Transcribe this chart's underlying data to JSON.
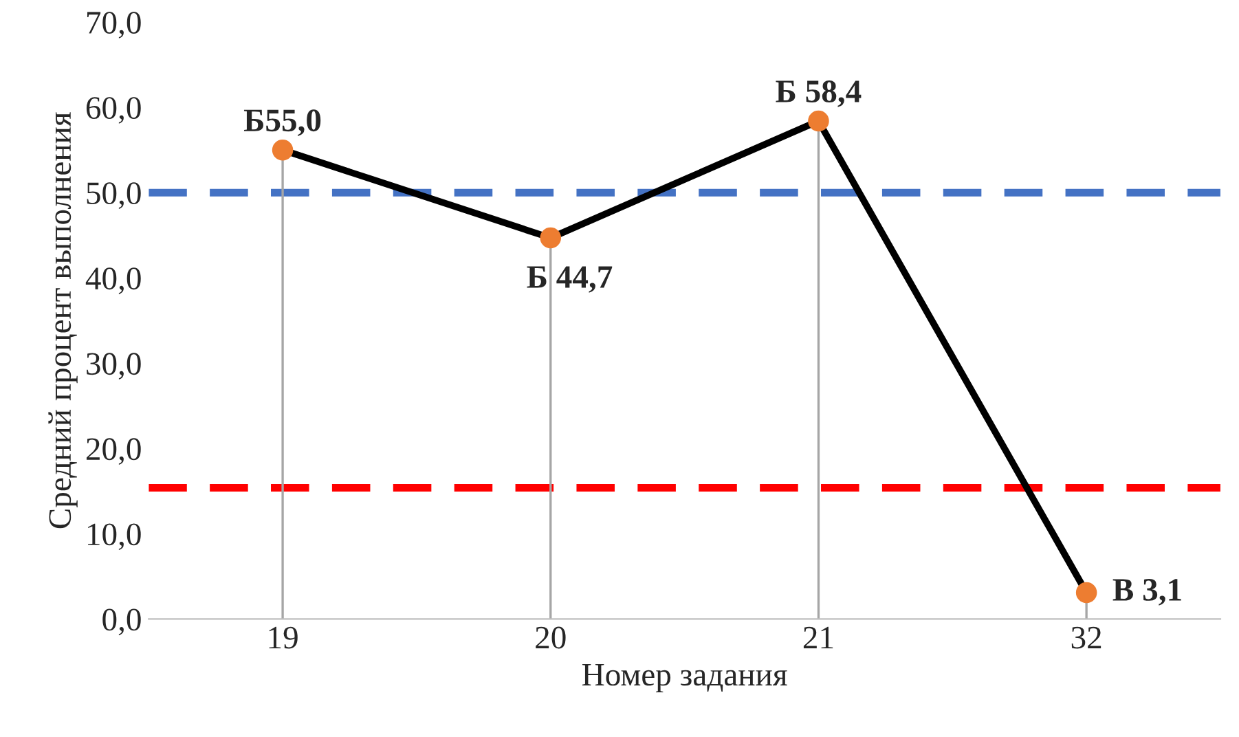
{
  "chart_data": {
    "type": "line",
    "xlabel": "Номер задания",
    "ylabel": "Средний процент выполнения",
    "categories": [
      "19",
      "20",
      "21",
      "32"
    ],
    "series": [
      {
        "color": "#000000",
        "values": [
          55.0,
          44.7,
          58.4,
          3.1
        ],
        "value_labels": [
          "Б55,0",
          "Б 44,7",
          "Б 58,4",
          "В 3,1"
        ],
        "colors": [
          "#ed7d31",
          "#ed7d31",
          "#ed7d31",
          "#ed7d31"
        ]
      }
    ],
    "marker": "circle",
    "line_style": "solid",
    "grid": "x",
    "ylim": [
      0,
      70
    ],
    "yticks": [
      {
        "value": 0,
        "label": "0,0"
      },
      {
        "value": 10,
        "label": "10,0"
      },
      {
        "value": 20,
        "label": "20,0"
      },
      {
        "value": 30,
        "label": "30,0"
      },
      {
        "value": 40,
        "label": "40,0"
      },
      {
        "value": 50,
        "label": "50,0"
      },
      {
        "value": 60,
        "label": "60,0"
      },
      {
        "value": 70,
        "label": "70,0"
      }
    ],
    "ref_lines": [
      {
        "axis": "y",
        "value": 50,
        "color": "#4472c4",
        "line_style": "dashed"
      },
      {
        "axis": "y",
        "value": 15.4,
        "color": "#ff0000",
        "line_style": "dashed"
      }
    ]
  }
}
